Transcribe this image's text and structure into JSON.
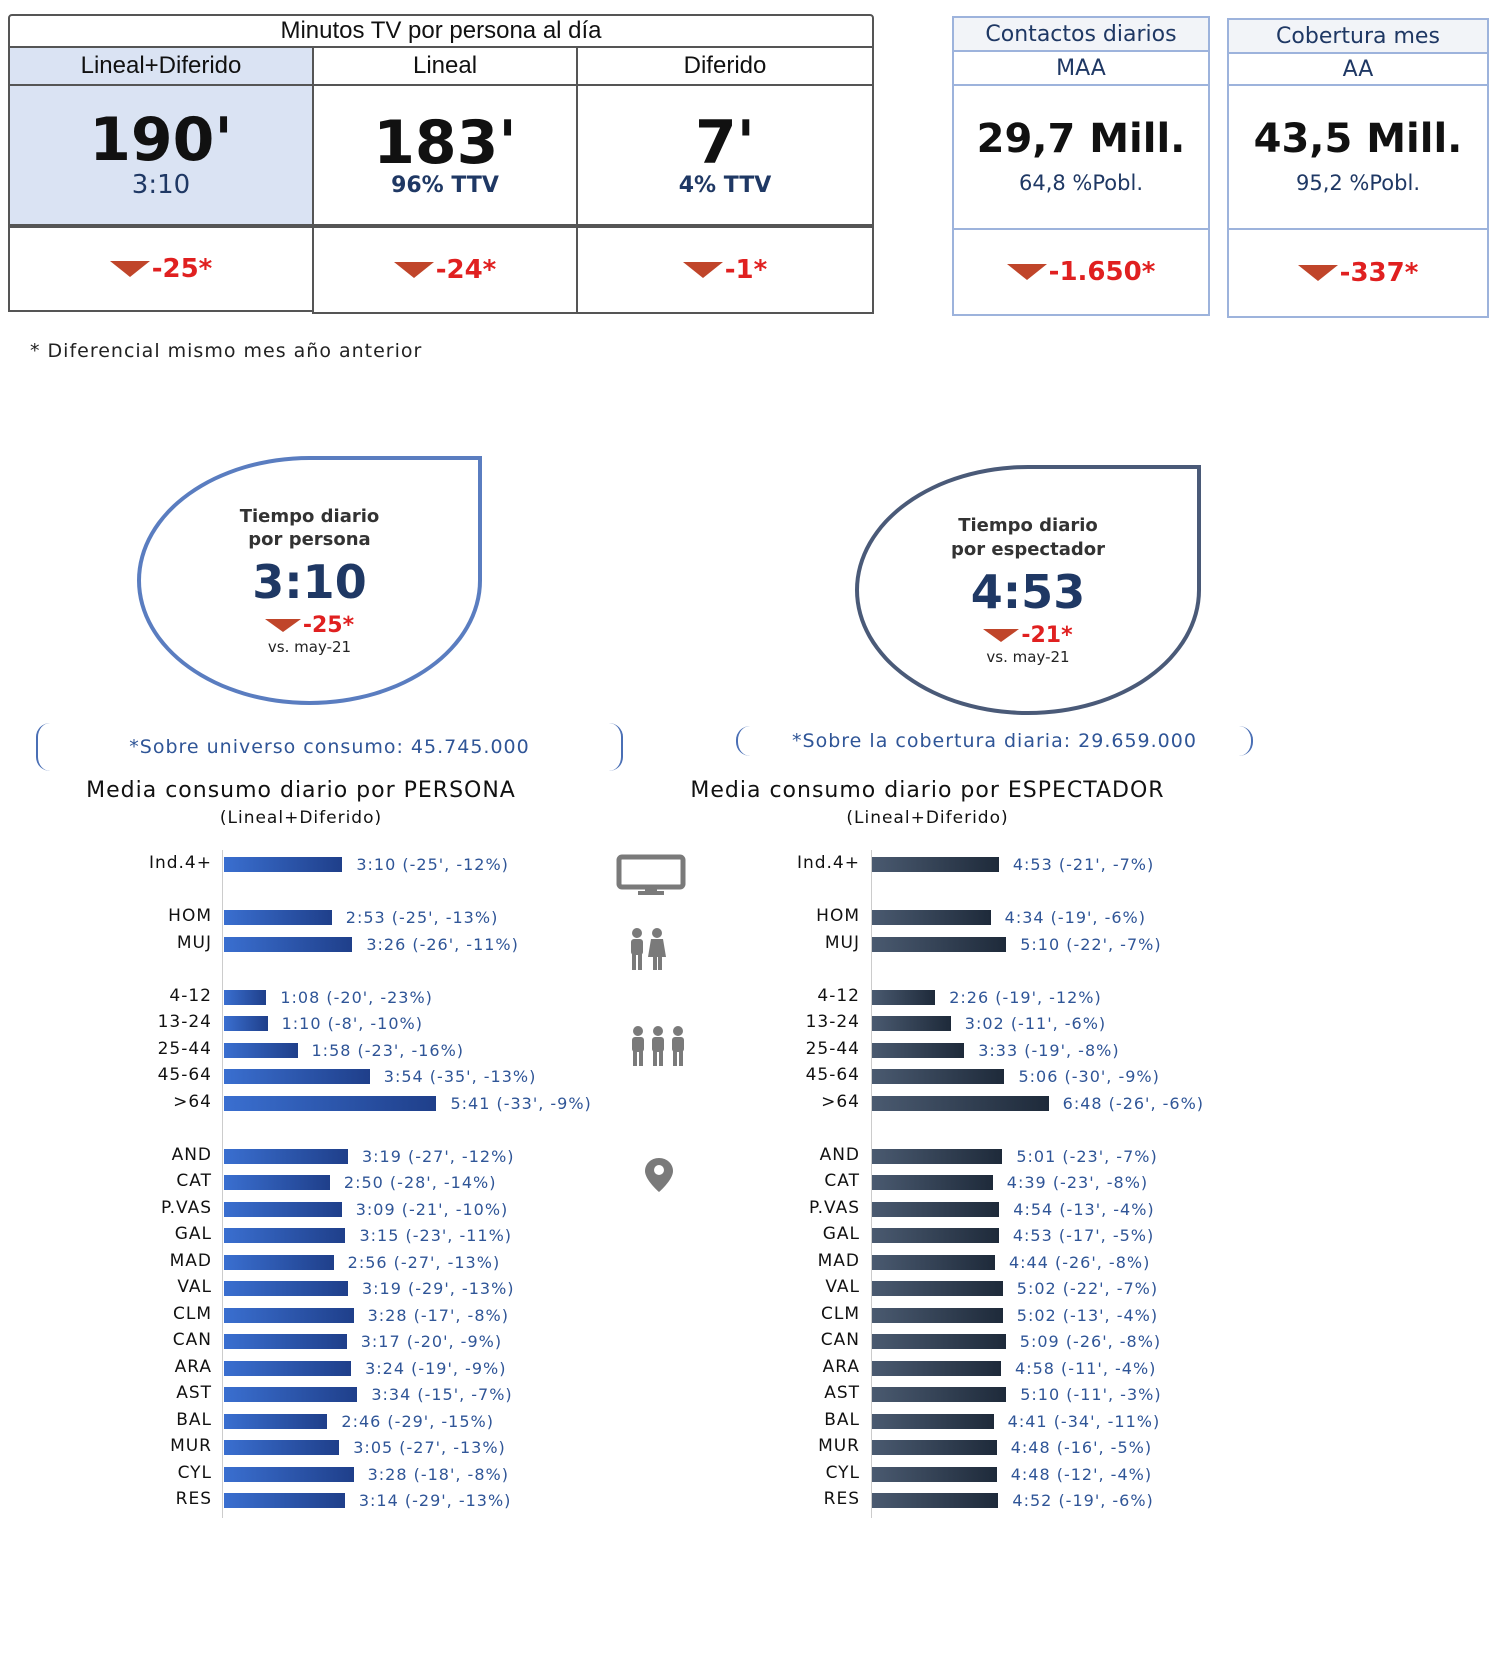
{
  "minutes_table": {
    "title": "Minutos TV por persona al día",
    "columns": [
      {
        "header": "Lineal+Diferido",
        "value": "190'",
        "sub": "3:10",
        "delta": "-25*"
      },
      {
        "header": "Lineal",
        "value": "183'",
        "sub": "96% TTV",
        "delta": "-24*"
      },
      {
        "header": "Diferido",
        "value": "7'",
        "sub": "4% TTV",
        "delta": "-1*"
      }
    ]
  },
  "contacts": {
    "title": "Contactos diarios",
    "sub": "MAA",
    "value": "29,7 Mill.",
    "pct": "64,8 %Pobl.",
    "delta": "-1.650*"
  },
  "coverage": {
    "title": "Cobertura mes",
    "sub": "AA",
    "value": "43,5 Mill.",
    "pct": "95,2 %Pobl.",
    "delta": "-337*"
  },
  "footnote": "* Diferencial  mismo mes año anterior",
  "drop_persona": {
    "title1": "Tiempo diario",
    "title2": "por persona",
    "value": "3:10",
    "delta": "-25*",
    "vs": "vs. may-21"
  },
  "drop_espectador": {
    "title1": "Tiempo diario",
    "title2": "por espectador",
    "value": "4:53",
    "delta": "-21*",
    "vs": "vs. may-21"
  },
  "universe_note": "*Sobre universo consumo: 45.745.000",
  "coverage_note": "*Sobre la cobertura diaria: 29.659.000",
  "colors": {
    "persona_bar": "#2f5fbf",
    "espectador_bar": "#2c3a4e",
    "delta_red": "#e02020",
    "down_arrow": "#c0452a",
    "label_blue": "#2f5597"
  },
  "icons": [
    "monitor-icon",
    "couple-icon",
    "family-icon",
    "location-pin-icon"
  ],
  "chart_data": [
    {
      "type": "bar",
      "orientation": "horizontal",
      "title": "Media consumo diario por PERSONA",
      "subtitle": "(Lineal+Diferido)",
      "categories": [
        "Ind.4+",
        "HOM",
        "MUJ",
        "4-12",
        "13-24",
        "25-44",
        "45-64",
        ">64",
        "AND",
        "CAT",
        "P.VAS",
        "GAL",
        "MAD",
        "VAL",
        "CLM",
        "CAN",
        "ARA",
        "AST",
        "BAL",
        "MUR",
        "CYL",
        "RES"
      ],
      "values_minutes": [
        190,
        173,
        206,
        68,
        70,
        118,
        234,
        341,
        199,
        170,
        189,
        195,
        176,
        199,
        208,
        197,
        204,
        214,
        166,
        185,
        208,
        194
      ],
      "data_labels": [
        "3:10 (-25', -12%)",
        "2:53 (-25', -13%)",
        "3:26 (-26', -11%)",
        "1:08 (-20', -23%)",
        "1:10 (-8', -10%)",
        "1:58 (-23', -16%)",
        "3:54 (-35', -13%)",
        "5:41 (-33', -9%)",
        "3:19 (-27', -12%)",
        "2:50 (-28', -14%)",
        "3:09 (-21', -10%)",
        "3:15 (-23', -11%)",
        "2:56 (-27', -13%)",
        "3:19 (-29', -13%)",
        "3:28 (-17', -8%)",
        "3:17 (-20', -9%)",
        "3:24 (-19', -9%)",
        "3:34 (-15', -7%)",
        "2:46 (-29', -15%)",
        "3:05 (-27', -13%)",
        "3:28 (-18', -8%)",
        "3:14 (-29', -13%)"
      ]
    },
    {
      "type": "bar",
      "orientation": "horizontal",
      "title": "Media consumo diario por ESPECTADOR",
      "subtitle": "(Lineal+Diferido)",
      "categories": [
        "Ind.4+",
        "HOM",
        "MUJ",
        "4-12",
        "13-24",
        "25-44",
        "45-64",
        ">64",
        "AND",
        "CAT",
        "P.VAS",
        "GAL",
        "MAD",
        "VAL",
        "CLM",
        "CAN",
        "ARA",
        "AST",
        "BAL",
        "MUR",
        "CYL",
        "RES"
      ],
      "values_minutes": [
        293,
        274,
        310,
        146,
        182,
        213,
        306,
        408,
        301,
        279,
        294,
        293,
        284,
        302,
        302,
        309,
        298,
        310,
        281,
        288,
        288,
        292
      ],
      "data_labels": [
        "4:53 (-21', -7%)",
        "4:34 (-19', -6%)",
        "5:10 (-22', -7%)",
        "2:26 (-19', -12%)",
        "3:02 (-11', -6%)",
        "3:33 (-19', -8%)",
        "5:06 (-30', -9%)",
        "6:48 (-26', -6%)",
        "5:01 (-23', -7%)",
        "4:39 (-23', -8%)",
        "4:54 (-13', -4%)",
        "4:53 (-17', -5%)",
        "4:44 (-26', -8%)",
        "5:02 (-22', -7%)",
        "5:02 (-13', -4%)",
        "5:09 (-26', -8%)",
        "4:58 (-11', -4%)",
        "5:10 (-11', -3%)",
        "4:41 (-34', -11%)",
        "4:48 (-16', -5%)",
        "4:48 (-12', -4%)",
        "4:52 (-19', -6%)"
      ]
    }
  ]
}
